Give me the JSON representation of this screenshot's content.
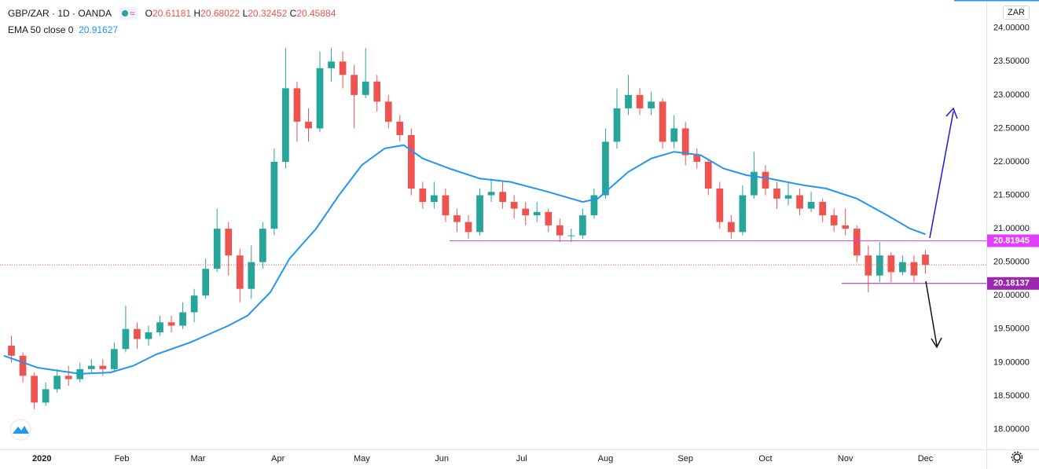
{
  "chart_data": {
    "type": "candlestick",
    "symbol": "GBP/ZAR · 1D · OANDA",
    "ohlc_labels": [
      "O",
      "H",
      "L",
      "C"
    ],
    "currency": "ZAR",
    "x": [
      2,
      5,
      8,
      11,
      14,
      17,
      20,
      23,
      26,
      29,
      32,
      35,
      38,
      41,
      44,
      47,
      50,
      53,
      56,
      59,
      62,
      65,
      68,
      71,
      74,
      77,
      80,
      83,
      86,
      89,
      92,
      95,
      98,
      101,
      104,
      107,
      110,
      113,
      116,
      119,
      122,
      125,
      128,
      131,
      134,
      137,
      140,
      143,
      146,
      149,
      152,
      155,
      158,
      161,
      164,
      167,
      170,
      173,
      176,
      179,
      182,
      185,
      188,
      191,
      194,
      197,
      200,
      203,
      206,
      209,
      212,
      215,
      218,
      221,
      224,
      227,
      230,
      233,
      236,
      239,
      242
    ],
    "open": [
      19.25,
      19.1,
      18.8,
      18.4,
      18.6,
      18.8,
      18.75,
      18.9,
      18.95,
      18.9,
      19.2,
      19.5,
      19.35,
      19.45,
      19.6,
      19.55,
      19.75,
      20.0,
      20.4,
      21.0,
      20.6,
      20.1,
      20.5,
      21.0,
      22.0,
      23.1,
      22.6,
      22.5,
      23.4,
      23.5,
      23.3,
      23.0,
      23.2,
      22.9,
      22.6,
      22.4,
      21.6,
      21.4,
      21.5,
      21.2,
      21.1,
      20.95,
      21.5,
      21.55,
      21.4,
      21.3,
      21.2,
      21.25,
      21.05,
      20.9,
      20.9,
      21.2,
      21.5,
      22.3,
      22.8,
      23.0,
      22.8,
      22.9,
      22.3,
      22.5,
      22.1,
      22.0,
      21.6,
      21.1,
      20.95,
      21.5,
      21.85,
      21.6,
      21.45,
      21.5,
      21.3,
      21.4,
      21.2,
      21.05,
      21.0,
      20.6,
      20.3,
      20.6,
      20.35,
      20.5,
      20.61181
    ],
    "high": [
      19.4,
      19.15,
      18.85,
      18.7,
      18.9,
      18.95,
      19.0,
      19.05,
      19.05,
      19.3,
      19.85,
      19.6,
      19.55,
      19.7,
      19.7,
      19.9,
      20.1,
      20.55,
      21.3,
      21.1,
      20.7,
      20.75,
      21.1,
      22.2,
      23.7,
      23.2,
      22.8,
      23.65,
      23.7,
      23.65,
      23.45,
      23.7,
      23.3,
      23.0,
      22.7,
      22.5,
      21.7,
      21.7,
      21.6,
      21.3,
      21.2,
      21.6,
      21.75,
      21.7,
      21.5,
      21.4,
      21.4,
      21.3,
      21.15,
      21.0,
      21.3,
      21.6,
      22.5,
      23.1,
      23.3,
      23.1,
      23.05,
      22.95,
      22.7,
      22.6,
      22.2,
      22.05,
      21.7,
      21.2,
      21.65,
      22.15,
      21.95,
      21.7,
      21.7,
      21.6,
      21.55,
      21.45,
      21.3,
      21.3,
      21.05,
      20.75,
      20.8,
      20.65,
      20.6,
      20.6,
      20.68022
    ],
    "low": [
      19.0,
      18.7,
      18.3,
      18.35,
      18.55,
      18.65,
      18.7,
      18.85,
      18.8,
      18.85,
      19.15,
      19.2,
      19.25,
      19.4,
      19.45,
      19.5,
      19.6,
      19.95,
      20.35,
      20.3,
      19.9,
      19.95,
      20.4,
      20.9,
      21.9,
      22.3,
      22.3,
      22.45,
      23.2,
      23.1,
      22.5,
      22.95,
      22.75,
      22.5,
      22.3,
      21.5,
      21.3,
      21.3,
      21.1,
      20.95,
      20.85,
      20.9,
      21.4,
      21.3,
      21.15,
      21.05,
      21.1,
      20.95,
      20.8,
      20.8,
      20.85,
      21.15,
      21.45,
      22.2,
      22.7,
      22.7,
      22.7,
      22.2,
      22.2,
      21.95,
      21.9,
      21.5,
      21.0,
      20.85,
      20.9,
      21.45,
      21.5,
      21.3,
      21.35,
      21.2,
      21.25,
      21.1,
      20.95,
      20.9,
      20.5,
      20.05,
      20.2,
      20.2,
      20.3,
      20.2,
      20.32452
    ],
    "close": [
      19.1,
      18.8,
      18.4,
      18.6,
      18.8,
      18.75,
      18.9,
      18.95,
      18.9,
      19.2,
      19.5,
      19.35,
      19.45,
      19.6,
      19.55,
      19.75,
      20.0,
      20.4,
      21.0,
      20.6,
      20.1,
      20.5,
      21.0,
      22.0,
      23.1,
      22.6,
      22.5,
      23.4,
      23.5,
      23.3,
      23.0,
      23.2,
      22.9,
      22.6,
      22.4,
      21.6,
      21.4,
      21.5,
      21.2,
      21.1,
      20.95,
      21.5,
      21.55,
      21.4,
      21.3,
      21.2,
      21.25,
      21.05,
      20.9,
      20.9,
      21.2,
      21.5,
      22.3,
      22.8,
      23.0,
      22.8,
      22.9,
      22.3,
      22.5,
      22.1,
      22.0,
      21.6,
      21.1,
      20.95,
      21.5,
      21.85,
      21.6,
      21.45,
      21.5,
      21.3,
      21.4,
      21.2,
      21.05,
      21.0,
      20.6,
      20.3,
      20.6,
      20.35,
      20.5,
      20.3,
      20.45884
    ],
    "up_color": "#26a69a",
    "down_color": "#ef5350",
    "series": [
      {
        "name": "EMA 50 close 0",
        "color": "#2196f3",
        "x": [
          0,
          9,
          20,
          28,
          34,
          40,
          49,
          59,
          64,
          70,
          75,
          82,
          88,
          94,
          100,
          105,
          110,
          117,
          125,
          133,
          143,
          152,
          156,
          160,
          164,
          170,
          176,
          183,
          189,
          195,
          201,
          210,
          216,
          224,
          232,
          238,
          242
        ],
        "values": [
          19.1,
          18.92,
          18.83,
          18.85,
          18.95,
          19.12,
          19.3,
          19.55,
          19.7,
          20.05,
          20.55,
          21.0,
          21.5,
          21.95,
          22.2,
          22.25,
          22.05,
          21.9,
          21.75,
          21.7,
          21.55,
          21.4,
          21.45,
          21.65,
          21.85,
          22.05,
          22.15,
          22.1,
          21.9,
          21.8,
          21.75,
          21.65,
          21.6,
          21.45,
          21.2,
          21.0,
          20.91627
        ]
      }
    ],
    "hlines": [
      {
        "value": 20.81945,
        "color": "#e040fb",
        "x_start": 117
      },
      {
        "value": 20.18137,
        "color": "#9c27b0",
        "x_start": 220
      }
    ],
    "last_price_color": "#ef5350",
    "xlim": [
      -1,
      258
    ],
    "xticks": [
      {
        "value": 10,
        "label": "2020"
      },
      {
        "value": 31,
        "label": "Feb"
      },
      {
        "value": 51,
        "label": "Mar"
      },
      {
        "value": 72,
        "label": "Apr"
      },
      {
        "value": 94,
        "label": "May"
      },
      {
        "value": 115,
        "label": "Jun"
      },
      {
        "value": 136,
        "label": "Jul"
      },
      {
        "value": 158,
        "label": "Aug"
      },
      {
        "value": 179,
        "label": "Sep"
      },
      {
        "value": 200,
        "label": "Oct"
      },
      {
        "value": 221,
        "label": "Nov"
      },
      {
        "value": 242,
        "label": "Dec"
      }
    ],
    "ylim": [
      17.7,
      24.42
    ],
    "yticks": [
      {
        "value": 18,
        "label": "18.00000"
      },
      {
        "value": 18.5,
        "label": "18.50000"
      },
      {
        "value": 19,
        "label": "19.00000"
      },
      {
        "value": 19.5,
        "label": "19.50000"
      },
      {
        "value": 20,
        "label": "20.00000"
      },
      {
        "value": 20.5,
        "label": "20.50000"
      },
      {
        "value": 21,
        "label": "21.00000"
      },
      {
        "value": 21.5,
        "label": "21.50000"
      },
      {
        "value": 22,
        "label": "22.00000"
      },
      {
        "value": 22.5,
        "label": "22.50000"
      },
      {
        "value": 23,
        "label": "23.00000"
      },
      {
        "value": 23.5,
        "label": "23.50000"
      },
      {
        "value": 24,
        "label": "24.00000"
      }
    ],
    "grid": false
  }
}
